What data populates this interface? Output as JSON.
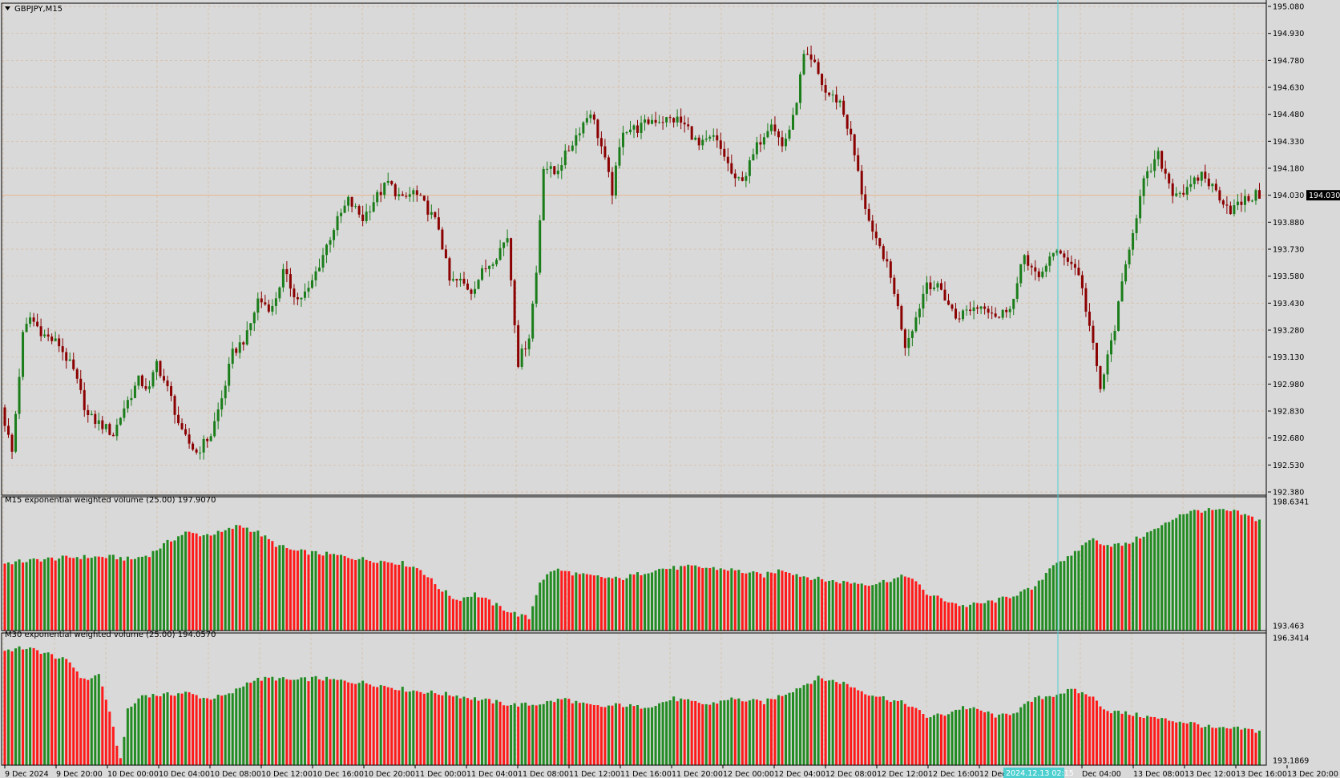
{
  "window": {
    "symbol_title": "GBPJPY,M15",
    "current_price_label": "194.030",
    "crosshair_time_label": "2024.12.13 02:15"
  },
  "colors": {
    "background": "#d9d9d9",
    "grid": "#d8b89a",
    "bull": "#1a7d1a",
    "bear": "#8b0000",
    "volume_bull": "#228b22",
    "volume_bear": "#ff1a1a",
    "crosshair": "#4fd0d0",
    "price_line": "#e8b890",
    "axis_text": "#000000"
  },
  "chart_data": [
    {
      "type": "candlestick",
      "title": "GBPJPY,M15",
      "ylim": [
        192.38,
        195.08
      ],
      "y_ticks": [
        "195.080",
        "194.930",
        "194.780",
        "194.630",
        "194.480",
        "194.330",
        "194.180",
        "194.030",
        "193.880",
        "193.730",
        "193.580",
        "193.430",
        "193.280",
        "193.130",
        "192.980",
        "192.830",
        "192.680",
        "192.530",
        "192.380"
      ],
      "x_ticks": [
        "9 Dec 2024",
        "9 Dec 20:00",
        "10 Dec 00:00",
        "10 Dec 04:00",
        "10 Dec 08:00",
        "10 Dec 12:00",
        "10 Dec 16:00",
        "10 Dec 20:00",
        "11 Dec 00:00",
        "11 Dec 04:00",
        "11 Dec 08:00",
        "11 Dec 12:00",
        "11 Dec 16:00",
        "11 Dec 20:00",
        "12 Dec 00:00",
        "12 Dec 04:00",
        "12 Dec 08:00",
        "12 Dec 12:00",
        "12 Dec 16:00",
        "12 Dec 20:00",
        "2024.12.13 02:15",
        "Dec 04:00",
        "13 Dec 08:00",
        "13 Dec 12:00",
        "13 Dec 16:00",
        "13 Dec 20:00"
      ],
      "close_path": [
        [
          0,
          192.85
        ],
        [
          3,
          192.6
        ],
        [
          6,
          193.25
        ],
        [
          8,
          193.35
        ],
        [
          12,
          193.25
        ],
        [
          16,
          193.2
        ],
        [
          20,
          193.05
        ],
        [
          24,
          192.8
        ],
        [
          28,
          192.75
        ],
        [
          31,
          192.7
        ],
        [
          34,
          192.85
        ],
        [
          38,
          193.0
        ],
        [
          41,
          192.95
        ],
        [
          43,
          193.1
        ],
        [
          47,
          192.9
        ],
        [
          50,
          192.7
        ],
        [
          54,
          192.6
        ],
        [
          58,
          192.7
        ],
        [
          61,
          192.9
        ],
        [
          64,
          193.15
        ],
        [
          68,
          193.25
        ],
        [
          71,
          193.45
        ],
        [
          75,
          193.4
        ],
        [
          78,
          193.6
        ],
        [
          82,
          193.45
        ],
        [
          85,
          193.5
        ],
        [
          89,
          193.7
        ],
        [
          92,
          193.85
        ],
        [
          96,
          194.0
        ],
        [
          100,
          193.9
        ],
        [
          103,
          194.0
        ],
        [
          107,
          194.1
        ],
        [
          111,
          194.0
        ],
        [
          114,
          194.05
        ],
        [
          118,
          193.95
        ],
        [
          121,
          193.85
        ],
        [
          124,
          193.55
        ],
        [
          127,
          193.55
        ],
        [
          130,
          193.5
        ],
        [
          133,
          193.6
        ],
        [
          137,
          193.7
        ],
        [
          140,
          193.8
        ],
        [
          143,
          193.1
        ],
        [
          146,
          193.25
        ],
        [
          148,
          193.6
        ],
        [
          150,
          194.2
        ],
        [
          153,
          194.15
        ],
        [
          156,
          194.25
        ],
        [
          160,
          194.4
        ],
        [
          163,
          194.5
        ],
        [
          166,
          194.3
        ],
        [
          169,
          194.05
        ],
        [
          172,
          194.4
        ],
        [
          176,
          194.4
        ],
        [
          180,
          194.45
        ],
        [
          183,
          194.45
        ],
        [
          187,
          194.45
        ],
        [
          190,
          194.4
        ],
        [
          193,
          194.3
        ],
        [
          197,
          194.35
        ],
        [
          200,
          194.25
        ],
        [
          203,
          194.1
        ],
        [
          206,
          194.15
        ],
        [
          209,
          194.3
        ],
        [
          213,
          194.45
        ],
        [
          216,
          194.3
        ],
        [
          219,
          194.45
        ],
        [
          222,
          194.8
        ],
        [
          225,
          194.75
        ],
        [
          228,
          194.6
        ],
        [
          232,
          194.55
        ],
        [
          235,
          194.35
        ],
        [
          238,
          194.05
        ],
        [
          241,
          193.8
        ],
        [
          244,
          193.7
        ],
        [
          247,
          193.5
        ],
        [
          250,
          193.2
        ],
        [
          253,
          193.35
        ],
        [
          256,
          193.55
        ],
        [
          260,
          193.5
        ],
        [
          264,
          193.35
        ],
        [
          268,
          193.4
        ],
        [
          272,
          193.42
        ],
        [
          276,
          193.35
        ],
        [
          280,
          193.45
        ],
        [
          283,
          193.7
        ],
        [
          287,
          193.55
        ],
        [
          290,
          193.7
        ],
        [
          294,
          193.7
        ],
        [
          298,
          193.6
        ],
        [
          301,
          193.3
        ],
        [
          304,
          192.95
        ],
        [
          308,
          193.3
        ],
        [
          312,
          193.75
        ],
        [
          316,
          194.1
        ],
        [
          320,
          194.25
        ],
        [
          324,
          194.05
        ],
        [
          328,
          194.05
        ],
        [
          332,
          194.15
        ],
        [
          336,
          194.05
        ],
        [
          340,
          193.95
        ],
        [
          344,
          194.0
        ],
        [
          347,
          194.03
        ]
      ]
    },
    {
      "type": "bar",
      "title": "M15 exponential weighted volume (25.00) 197.9070",
      "ylim": [
        193.463,
        198.6341
      ],
      "y_ticks": [
        "198.6341",
        "193.463"
      ],
      "level_path": [
        [
          0,
          0.55
        ],
        [
          10,
          0.58
        ],
        [
          20,
          0.6
        ],
        [
          30,
          0.6
        ],
        [
          35,
          0.58
        ],
        [
          40,
          0.62
        ],
        [
          45,
          0.72
        ],
        [
          50,
          0.8
        ],
        [
          55,
          0.78
        ],
        [
          60,
          0.8
        ],
        [
          65,
          0.86
        ],
        [
          70,
          0.8
        ],
        [
          75,
          0.7
        ],
        [
          80,
          0.65
        ],
        [
          90,
          0.62
        ],
        [
          100,
          0.58
        ],
        [
          110,
          0.55
        ],
        [
          115,
          0.5
        ],
        [
          120,
          0.35
        ],
        [
          125,
          0.25
        ],
        [
          130,
          0.3
        ],
        [
          135,
          0.22
        ],
        [
          140,
          0.15
        ],
        [
          145,
          0.1
        ],
        [
          148,
          0.4
        ],
        [
          152,
          0.5
        ],
        [
          160,
          0.45
        ],
        [
          170,
          0.42
        ],
        [
          180,
          0.5
        ],
        [
          190,
          0.52
        ],
        [
          200,
          0.5
        ],
        [
          210,
          0.45
        ],
        [
          215,
          0.5
        ],
        [
          220,
          0.45
        ],
        [
          225,
          0.42
        ],
        [
          230,
          0.4
        ],
        [
          240,
          0.38
        ],
        [
          250,
          0.45
        ],
        [
          255,
          0.3
        ],
        [
          260,
          0.25
        ],
        [
          265,
          0.2
        ],
        [
          270,
          0.22
        ],
        [
          275,
          0.25
        ],
        [
          280,
          0.3
        ],
        [
          285,
          0.35
        ],
        [
          290,
          0.55
        ],
        [
          295,
          0.6
        ],
        [
          300,
          0.75
        ],
        [
          305,
          0.7
        ],
        [
          310,
          0.7
        ],
        [
          315,
          0.78
        ],
        [
          320,
          0.85
        ],
        [
          325,
          0.95
        ],
        [
          330,
          0.98
        ],
        [
          335,
          0.98
        ],
        [
          340,
          0.97
        ],
        [
          347,
          0.9
        ]
      ]
    },
    {
      "type": "bar",
      "title": "M30 exponential weighted volume (25.00) 194.0570",
      "ylim": [
        193.1869,
        196.3414
      ],
      "y_ticks": [
        "196.3414",
        "193.1869"
      ],
      "level_path": [
        [
          0,
          0.95
        ],
        [
          6,
          0.97
        ],
        [
          12,
          0.92
        ],
        [
          18,
          0.85
        ],
        [
          22,
          0.7
        ],
        [
          26,
          0.75
        ],
        [
          28,
          0.55
        ],
        [
          30,
          0.3
        ],
        [
          32,
          0.05
        ],
        [
          34,
          0.45
        ],
        [
          38,
          0.58
        ],
        [
          44,
          0.58
        ],
        [
          50,
          0.6
        ],
        [
          56,
          0.55
        ],
        [
          62,
          0.58
        ],
        [
          68,
          0.7
        ],
        [
          74,
          0.72
        ],
        [
          80,
          0.7
        ],
        [
          86,
          0.72
        ],
        [
          92,
          0.7
        ],
        [
          100,
          0.68
        ],
        [
          106,
          0.65
        ],
        [
          112,
          0.62
        ],
        [
          118,
          0.6
        ],
        [
          124,
          0.58
        ],
        [
          130,
          0.55
        ],
        [
          136,
          0.52
        ],
        [
          140,
          0.5
        ],
        [
          146,
          0.5
        ],
        [
          150,
          0.52
        ],
        [
          155,
          0.55
        ],
        [
          160,
          0.5
        ],
        [
          165,
          0.48
        ],
        [
          170,
          0.5
        ],
        [
          175,
          0.48
        ],
        [
          180,
          0.5
        ],
        [
          185,
          0.55
        ],
        [
          190,
          0.52
        ],
        [
          195,
          0.5
        ],
        [
          200,
          0.55
        ],
        [
          210,
          0.52
        ],
        [
          218,
          0.62
        ],
        [
          225,
          0.72
        ],
        [
          232,
          0.68
        ],
        [
          238,
          0.6
        ],
        [
          244,
          0.55
        ],
        [
          250,
          0.5
        ],
        [
          255,
          0.4
        ],
        [
          260,
          0.42
        ],
        [
          265,
          0.48
        ],
        [
          270,
          0.45
        ],
        [
          275,
          0.4
        ],
        [
          280,
          0.45
        ],
        [
          285,
          0.55
        ],
        [
          290,
          0.58
        ],
        [
          295,
          0.62
        ],
        [
          300,
          0.58
        ],
        [
          305,
          0.45
        ],
        [
          312,
          0.42
        ],
        [
          320,
          0.38
        ],
        [
          328,
          0.35
        ],
        [
          335,
          0.3
        ],
        [
          342,
          0.3
        ],
        [
          347,
          0.28
        ]
      ]
    }
  ]
}
